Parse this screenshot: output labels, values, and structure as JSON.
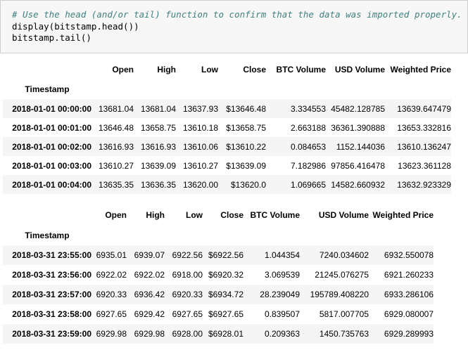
{
  "code_cell": {
    "lines": [
      "# Use the head (and/or tail) function to confirm that the data was imported properly.",
      "display(bitstamp.head())",
      "bitstamp.tail()"
    ]
  },
  "head_table": {
    "columns": [
      "Open",
      "High",
      "Low",
      "Close",
      "BTC Volume",
      "USD Volume",
      "Weighted Price"
    ],
    "index_name": "Timestamp",
    "rows": [
      {
        "index": "2018-01-01 00:00:00",
        "cells": [
          "13681.04",
          "13681.04",
          "13637.93",
          "$13646.48",
          "3.334553",
          "45482.128785",
          "13639.647479"
        ]
      },
      {
        "index": "2018-01-01 00:01:00",
        "cells": [
          "13646.48",
          "13658.75",
          "13610.18",
          "$13658.75",
          "2.663188",
          "36361.390888",
          "13653.332816"
        ]
      },
      {
        "index": "2018-01-01 00:02:00",
        "cells": [
          "13616.93",
          "13616.93",
          "13610.06",
          "$13610.22",
          "0.084653",
          "1152.144036",
          "13610.136247"
        ]
      },
      {
        "index": "2018-01-01 00:03:00",
        "cells": [
          "13610.27",
          "13639.09",
          "13610.27",
          "$13639.09",
          "7.182986",
          "97856.416478",
          "13623.361128"
        ]
      },
      {
        "index": "2018-01-01 00:04:00",
        "cells": [
          "13635.35",
          "13636.35",
          "13620.00",
          "$13620.0",
          "1.069665",
          "14582.660932",
          "13632.923329"
        ]
      }
    ]
  },
  "tail_table": {
    "columns": [
      "Open",
      "High",
      "Low",
      "Close",
      "BTC Volume",
      "USD Volume",
      "Weighted Price"
    ],
    "index_name": "Timestamp",
    "rows": [
      {
        "index": "2018-03-31 23:55:00",
        "cells": [
          "6935.01",
          "6939.07",
          "6922.56",
          "$6922.56",
          "1.044354",
          "7240.034602",
          "6932.550078"
        ]
      },
      {
        "index": "2018-03-31 23:56:00",
        "cells": [
          "6922.02",
          "6922.02",
          "6918.00",
          "$6920.32",
          "3.069539",
          "21245.076275",
          "6921.260233"
        ]
      },
      {
        "index": "2018-03-31 23:57:00",
        "cells": [
          "6920.33",
          "6936.42",
          "6920.33",
          "$6934.72",
          "28.239049",
          "195789.408220",
          "6933.286106"
        ]
      },
      {
        "index": "2018-03-31 23:58:00",
        "cells": [
          "6927.65",
          "6929.42",
          "6927.65",
          "$6927.65",
          "0.839507",
          "5817.007705",
          "6929.080007"
        ]
      },
      {
        "index": "2018-03-31 23:59:00",
        "cells": [
          "6929.98",
          "6929.98",
          "6928.00",
          "$6928.01",
          "0.209363",
          "1450.735763",
          "6929.289993"
        ]
      }
    ]
  }
}
